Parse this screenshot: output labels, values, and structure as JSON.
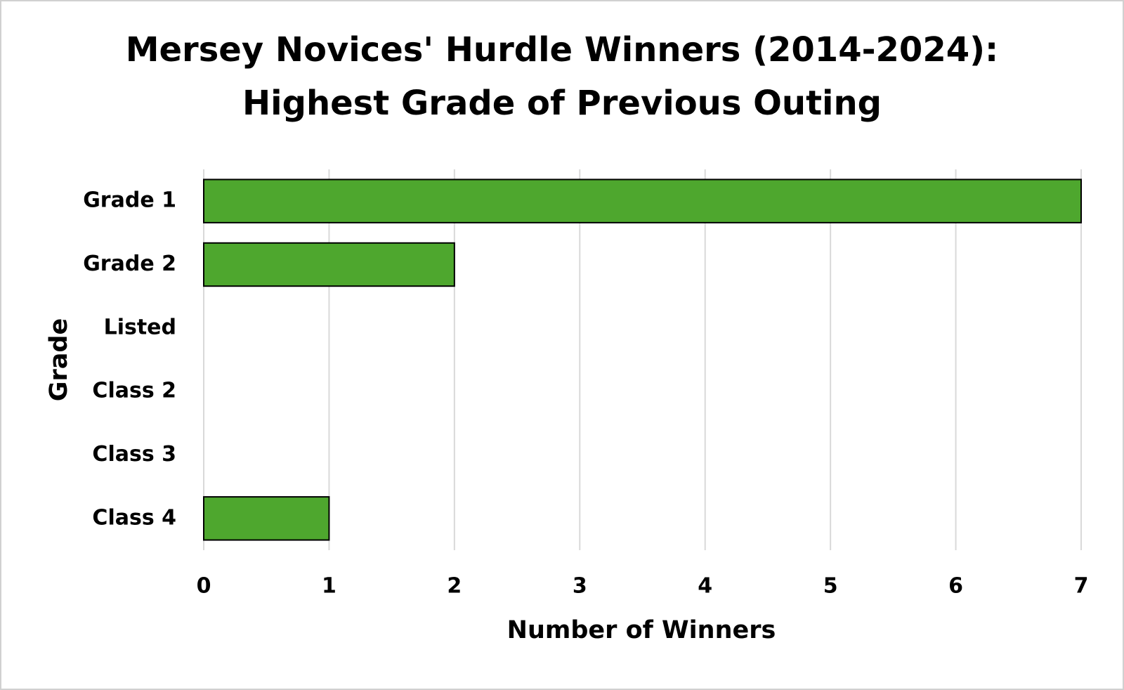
{
  "chart_data": {
    "type": "bar",
    "orientation": "horizontal",
    "title": [
      "Mersey Novices' Hurdle Winners (2014-2024):",
      "Highest Grade of Previous Outing"
    ],
    "x_label": "Number of Winners",
    "y_label": "Grade",
    "categories": [
      "Grade 1",
      "Grade 2",
      "Listed",
      "Class 2",
      "Class 3",
      "Class 4"
    ],
    "values": [
      7,
      2,
      0,
      0,
      0,
      1
    ],
    "color": "#4ea72e",
    "xlim": [
      0,
      7
    ],
    "xticks": [
      0,
      1,
      2,
      3,
      4,
      5,
      6,
      7
    ],
    "grid": true
  }
}
